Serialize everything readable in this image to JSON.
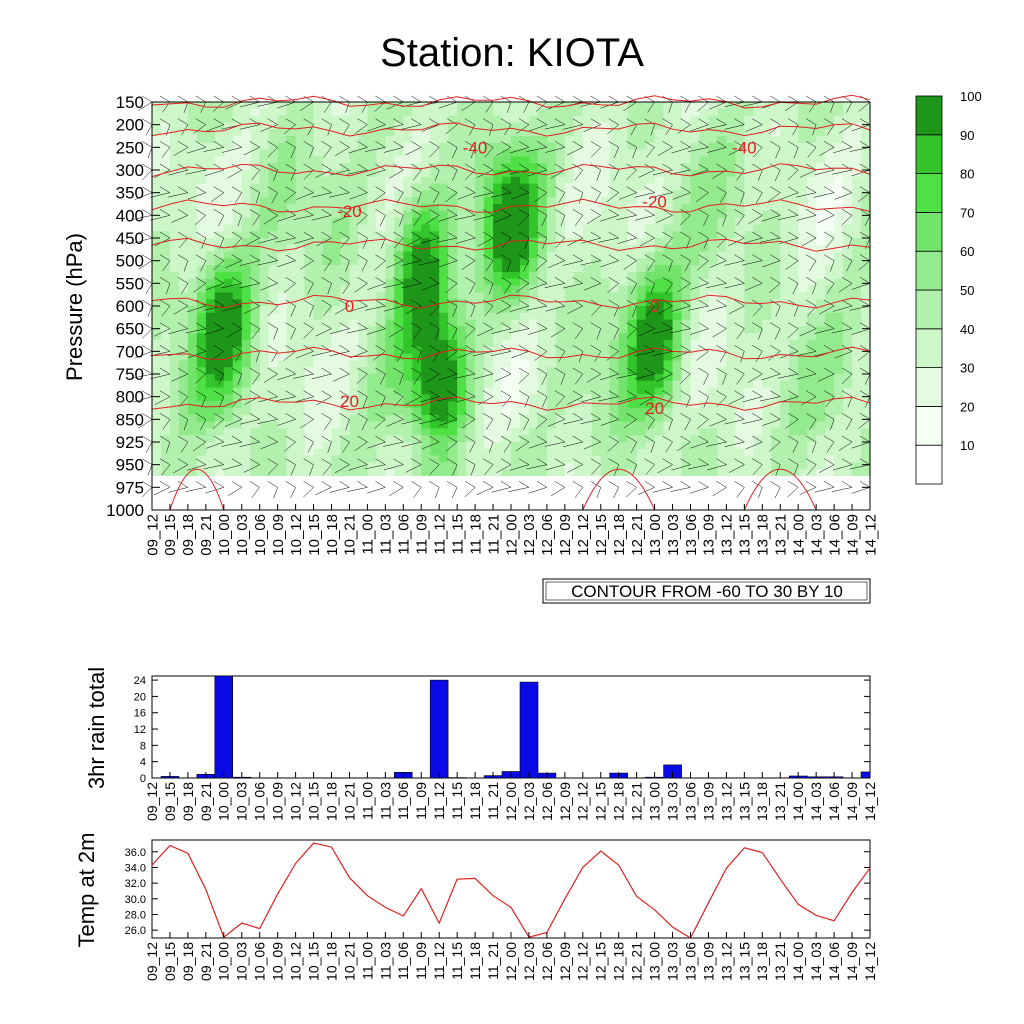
{
  "title": "Station: KIOTA",
  "time_labels": [
    "09_12",
    "09_15",
    "09_18",
    "09_21",
    "10_00",
    "10_03",
    "10_06",
    "10_09",
    "10_12",
    "10_15",
    "10_18",
    "10_21",
    "11_00",
    "11_03",
    "11_06",
    "11_09",
    "11_12",
    "11_15",
    "11_18",
    "11_21",
    "12_00",
    "12_03",
    "12_06",
    "12_09",
    "12_12",
    "12_15",
    "12_18",
    "12_21",
    "13_00",
    "13_03",
    "13_06",
    "13_09",
    "13_12",
    "13_15",
    "13_18",
    "13_21",
    "14_00",
    "14_03",
    "14_06",
    "14_09",
    "14_12"
  ],
  "colors": {
    "fill_levels": [
      "#ffffff",
      "#f5fff4",
      "#e4fbe2",
      "#cdf6c9",
      "#b2f0ad",
      "#94eb8e",
      "#73e46b",
      "#4fe046",
      "#33c42b",
      "#1e961a"
    ],
    "temp_contour": "#e02020",
    "rain_bar": "#0a0ae6",
    "temp_line": "#e02020"
  },
  "chart_data": [
    {
      "type": "heatmap",
      "title": "Station: KIOTA",
      "ylabel": "Pressure (hPa)",
      "xlabel": "",
      "pressure_levels": [
        150,
        200,
        250,
        300,
        350,
        400,
        450,
        500,
        550,
        600,
        650,
        700,
        750,
        800,
        850,
        925,
        950,
        975,
        1000
      ],
      "fill_variable_levels": [
        10,
        20,
        30,
        40,
        50,
        60,
        70,
        80,
        90,
        100
      ],
      "colorbar_labels": [
        "10",
        "20",
        "30",
        "40",
        "50",
        "60",
        "70",
        "80",
        "90",
        "100"
      ],
      "contour_note": "CONTOUR FROM -60 TO 30 BY 10",
      "temperature_contour_labels": [
        {
          "value": "-40",
          "time": "11_18",
          "pressure": 250
        },
        {
          "value": "-40",
          "time": "13_15",
          "pressure": 250
        },
        {
          "value": "-20",
          "time": "10_21",
          "pressure": 390
        },
        {
          "value": "-20",
          "time": "13_00",
          "pressure": 370
        },
        {
          "value": "0",
          "time": "10_21",
          "pressure": 600
        },
        {
          "value": "0",
          "time": "13_00",
          "pressure": 600
        },
        {
          "value": "20",
          "time": "10_21",
          "pressure": 810
        },
        {
          "value": "20",
          "time": "13_00",
          "pressure": 825
        }
      ],
      "regions_90": [
        {
          "time": "10_00",
          "pressure": 640
        },
        {
          "time": "11_09",
          "pressure": 500
        },
        {
          "time": "11_12",
          "pressure": 755
        },
        {
          "time": "12_00",
          "pressure": 420
        },
        {
          "time": "13_00",
          "pressure": 670
        }
      ]
    },
    {
      "type": "bar",
      "ylabel": "3hr rain total",
      "ylim": [
        0,
        25
      ],
      "yticks": [
        0,
        4,
        8,
        12,
        16,
        20,
        24
      ],
      "values": [
        0,
        0.4,
        0,
        0.9,
        25,
        0.2,
        0,
        0,
        0,
        0,
        0,
        0,
        0,
        0,
        1.4,
        0,
        24,
        0.1,
        0,
        0.6,
        1.6,
        23.5,
        1.2,
        0,
        0,
        0,
        1.2,
        0,
        0.2,
        3.2,
        0,
        0,
        0,
        0,
        0,
        0,
        0.5,
        0.3,
        0.3,
        0,
        1.5
      ]
    },
    {
      "type": "line",
      "ylabel": "Temp at 2m",
      "ylim": [
        25.0,
        37.5
      ],
      "yticks": [
        26.0,
        28.0,
        30.0,
        32.0,
        34.0,
        36.0
      ],
      "ytick_labels": [
        "26.0",
        "28.0",
        "30.0",
        "32.0",
        "34.0",
        "36.0"
      ],
      "values": [
        34.3,
        36.8,
        35.8,
        31.2,
        25.1,
        26.9,
        26.2,
        30.6,
        34.5,
        37.1,
        36.6,
        32.7,
        30.4,
        28.9,
        27.8,
        31.3,
        26.9,
        32.5,
        32.6,
        30.4,
        28.9,
        25.1,
        25.7,
        30.0,
        34.0,
        36.1,
        34.3,
        30.3,
        28.6,
        26.4,
        25.0,
        29.5,
        33.9,
        36.5,
        35.9,
        32.5,
        29.3,
        27.9,
        27.2,
        30.8,
        33.9
      ]
    }
  ]
}
